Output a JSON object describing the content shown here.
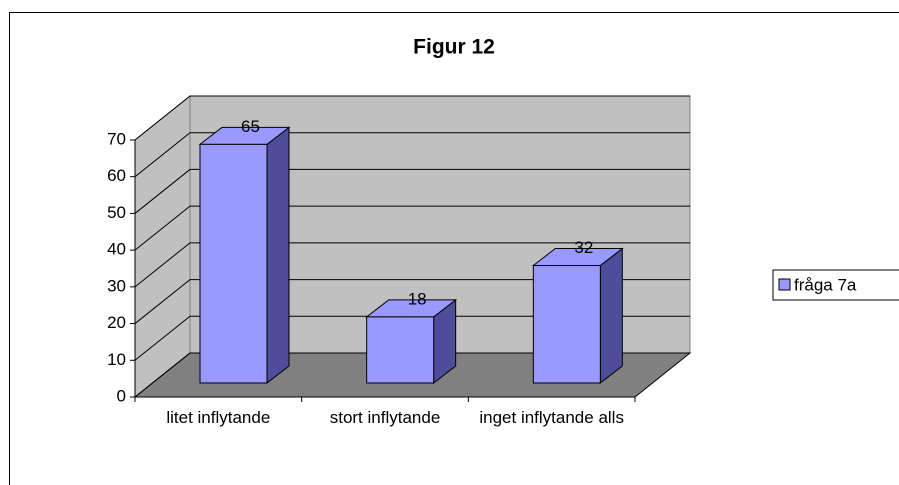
{
  "chart_data": {
    "type": "bar",
    "title": "Figur 12",
    "categories": [
      "litet inflytande",
      "stort inflytande",
      "inget inflytande alls"
    ],
    "series": [
      {
        "name": "fråga 7a",
        "color": "#9999ff",
        "values": [
          65,
          18,
          32
        ]
      }
    ],
    "ylim": [
      0,
      70
    ],
    "yticks": [
      0,
      10,
      20,
      30,
      40,
      50,
      60,
      70
    ],
    "grid": true,
    "legend": "right"
  }
}
